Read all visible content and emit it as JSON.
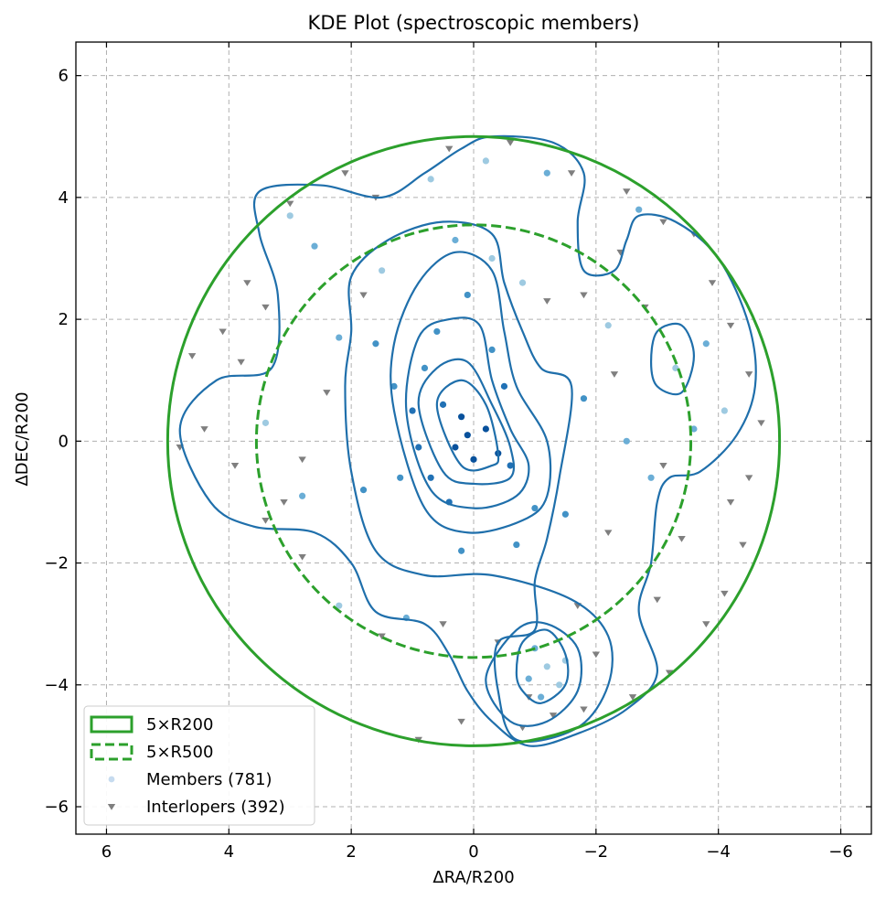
{
  "chart_data": {
    "type": "scatter",
    "title": "KDE Plot (spectroscopic members)",
    "xlabel": "ΔRA/R200",
    "ylabel": "ΔDEC/R200",
    "xlim": [
      6.5,
      -6.5
    ],
    "ylim": [
      -6.45,
      6.55
    ],
    "x_ticks": [
      6,
      4,
      2,
      0,
      -2,
      -4,
      -6
    ],
    "y_ticks": [
      6,
      4,
      2,
      0,
      -2,
      -4,
      -6
    ],
    "x_tick_labels": [
      "6",
      "4",
      "2",
      "0",
      "−2",
      "−4",
      "−6"
    ],
    "y_tick_labels": [
      "6",
      "4",
      "2",
      "0",
      "−2",
      "−4",
      "−6"
    ],
    "grid": true,
    "x_axis_reversed": true,
    "legend_position": "lower-left",
    "circles": [
      {
        "name": "5×R200",
        "center": [
          0,
          0
        ],
        "radius": 5.0,
        "style": "solid",
        "color": "#2ca02c"
      },
      {
        "name": "5×R500",
        "center": [
          0,
          0
        ],
        "radius": 3.55,
        "style": "dashed",
        "color": "#2ca02c"
      }
    ],
    "series": [
      {
        "name": "Members (781)",
        "marker": "circle",
        "color": "#4a98c9",
        "count": 781
      },
      {
        "name": "Interlopers (392)",
        "marker": "triangle-down",
        "color": "#7f7f7f",
        "count": 392
      }
    ],
    "members_sample": [
      [
        0.1,
        0.1
      ],
      [
        -0.2,
        0.2
      ],
      [
        0.3,
        -0.1
      ],
      [
        0.0,
        -0.3
      ],
      [
        -0.4,
        -0.2
      ],
      [
        0.2,
        0.4
      ],
      [
        0.5,
        0.6
      ],
      [
        0.8,
        1.2
      ],
      [
        1.0,
        0.5
      ],
      [
        0.6,
        1.8
      ],
      [
        0.1,
        2.4
      ],
      [
        -0.3,
        1.5
      ],
      [
        -0.6,
        -0.4
      ],
      [
        -1.0,
        -1.1
      ],
      [
        -0.7,
        -1.7
      ],
      [
        0.4,
        -1.0
      ],
      [
        1.2,
        -0.6
      ],
      [
        0.9,
        -0.1
      ],
      [
        -1.2,
        -3.7
      ],
      [
        -1.0,
        -3.4
      ],
      [
        -1.4,
        -4.0
      ],
      [
        -1.1,
        -4.2
      ],
      [
        -1.5,
        -3.6
      ],
      [
        -0.9,
        -3.9
      ],
      [
        1.5,
        2.8
      ],
      [
        2.2,
        1.7
      ],
      [
        1.8,
        -0.8
      ],
      [
        -1.8,
        0.7
      ],
      [
        -2.2,
        1.9
      ],
      [
        -2.5,
        0.0
      ],
      [
        3.0,
        3.7
      ],
      [
        2.6,
        3.2
      ],
      [
        -3.3,
        1.2
      ],
      [
        -3.8,
        1.6
      ],
      [
        -4.1,
        0.5
      ],
      [
        -3.6,
        0.2
      ],
      [
        -0.2,
        4.6
      ],
      [
        -1.2,
        4.4
      ],
      [
        0.7,
        4.3
      ],
      [
        -2.7,
        3.8
      ],
      [
        2.2,
        -2.7
      ],
      [
        1.1,
        -2.9
      ],
      [
        -0.3,
        3.0
      ],
      [
        0.3,
        3.3
      ],
      [
        -0.8,
        2.6
      ],
      [
        1.3,
        0.9
      ],
      [
        0.7,
        -0.6
      ],
      [
        -0.5,
        0.9
      ],
      [
        1.6,
        1.6
      ],
      [
        -1.5,
        -1.2
      ],
      [
        0.2,
        -1.8
      ],
      [
        2.8,
        -0.9
      ],
      [
        3.4,
        0.3
      ],
      [
        -2.9,
        -0.6
      ]
    ],
    "interlopers_sample": [
      [
        4.6,
        1.4
      ],
      [
        4.1,
        1.8
      ],
      [
        3.8,
        1.3
      ],
      [
        4.4,
        0.2
      ],
      [
        3.4,
        2.2
      ],
      [
        3.7,
        2.6
      ],
      [
        3.1,
        -1.0
      ],
      [
        2.8,
        -0.3
      ],
      [
        3.0,
        3.9
      ],
      [
        2.1,
        4.4
      ],
      [
        1.6,
        4.0
      ],
      [
        0.4,
        4.8
      ],
      [
        -0.6,
        4.9
      ],
      [
        -1.6,
        4.4
      ],
      [
        -2.5,
        4.1
      ],
      [
        -3.1,
        3.6
      ],
      [
        -3.6,
        3.4
      ],
      [
        -3.9,
        2.6
      ],
      [
        -4.2,
        1.9
      ],
      [
        -4.5,
        1.1
      ],
      [
        -4.7,
        0.3
      ],
      [
        -4.5,
        -0.6
      ],
      [
        -4.4,
        -1.7
      ],
      [
        -4.1,
        -2.5
      ],
      [
        -3.8,
        -3.0
      ],
      [
        -3.2,
        -3.8
      ],
      [
        -2.6,
        -4.2
      ],
      [
        -1.8,
        -4.4
      ],
      [
        -0.8,
        -4.7
      ],
      [
        0.2,
        -4.6
      ],
      [
        0.9,
        -4.9
      ],
      [
        1.5,
        -3.2
      ],
      [
        2.8,
        -1.9
      ],
      [
        3.4,
        -1.3
      ],
      [
        -2.2,
        -1.5
      ],
      [
        -2.8,
        2.2
      ],
      [
        -1.2,
        2.3
      ],
      [
        -1.8,
        2.4
      ],
      [
        -2.0,
        -3.5
      ],
      [
        -1.7,
        -2.7
      ],
      [
        0.5,
        -3.0
      ],
      [
        -0.4,
        -3.3
      ],
      [
        -3.0,
        -2.6
      ],
      [
        -4.2,
        -1.0
      ],
      [
        -2.4,
        3.1
      ],
      [
        1.8,
        2.4
      ],
      [
        2.4,
        0.8
      ],
      [
        4.8,
        -0.1
      ],
      [
        3.9,
        -0.4
      ],
      [
        -3.4,
        -1.6
      ],
      [
        -3.1,
        -0.4
      ],
      [
        -2.3,
        1.1
      ],
      [
        -0.9,
        -4.2
      ],
      [
        -1.3,
        -4.5
      ]
    ],
    "kde_contours": [
      {
        "level": "outer",
        "points": [
          [
            4.8,
            0.2
          ],
          [
            4.2,
            1.0
          ],
          [
            3.3,
            1.2
          ],
          [
            3.2,
            2.4
          ],
          [
            3.5,
            3.4
          ],
          [
            3.5,
            4.1
          ],
          [
            2.5,
            4.2
          ],
          [
            1.5,
            4.0
          ],
          [
            0.8,
            4.4
          ],
          [
            0.2,
            4.8
          ],
          [
            -0.3,
            5.0
          ],
          [
            -1.3,
            4.9
          ],
          [
            -1.8,
            4.4
          ],
          [
            -1.7,
            3.6
          ],
          [
            -1.8,
            2.8
          ],
          [
            -2.3,
            2.8
          ],
          [
            -2.5,
            3.3
          ],
          [
            -2.7,
            3.7
          ],
          [
            -3.3,
            3.6
          ],
          [
            -4.0,
            3.0
          ],
          [
            -4.5,
            1.9
          ],
          [
            -4.6,
            0.9
          ],
          [
            -4.3,
            0.1
          ],
          [
            -3.7,
            -0.5
          ],
          [
            -3.2,
            -0.6
          ],
          [
            -3.0,
            -1.0
          ],
          [
            -2.9,
            -2.0
          ],
          [
            -2.7,
            -2.8
          ],
          [
            -3.0,
            -3.8
          ],
          [
            -2.5,
            -4.4
          ],
          [
            -1.7,
            -4.8
          ],
          [
            -0.9,
            -5.0
          ],
          [
            -0.3,
            -4.6
          ],
          [
            0.1,
            -4.1
          ],
          [
            0.4,
            -3.5
          ],
          [
            0.8,
            -3.0
          ],
          [
            1.6,
            -2.8
          ],
          [
            2.0,
            -2.0
          ],
          [
            2.6,
            -1.5
          ],
          [
            3.6,
            -1.4
          ],
          [
            4.3,
            -1.0
          ],
          [
            4.8,
            0.2
          ]
        ]
      },
      {
        "level": "island",
        "points": [
          [
            -2.9,
            1.3
          ],
          [
            -3.0,
            1.8
          ],
          [
            -3.4,
            1.9
          ],
          [
            -3.6,
            1.4
          ],
          [
            -3.4,
            0.8
          ],
          [
            -3.0,
            0.9
          ],
          [
            -2.9,
            1.3
          ]
        ]
      },
      {
        "level": "middle",
        "points": [
          [
            2.1,
            0.9
          ],
          [
            2.0,
            1.8
          ],
          [
            2.0,
            2.7
          ],
          [
            1.4,
            3.3
          ],
          [
            0.5,
            3.6
          ],
          [
            -0.3,
            3.4
          ],
          [
            -0.5,
            2.6
          ],
          [
            -0.8,
            1.8
          ],
          [
            -1.1,
            1.2
          ],
          [
            -1.6,
            0.9
          ],
          [
            -1.4,
            -0.6
          ],
          [
            -1.2,
            -1.6
          ],
          [
            -1.0,
            -2.3
          ],
          [
            -1.0,
            -3.1
          ],
          [
            -0.4,
            -3.3
          ],
          [
            -0.4,
            -4.1
          ],
          [
            -0.7,
            -4.9
          ],
          [
            -1.7,
            -4.7
          ],
          [
            -2.2,
            -4.0
          ],
          [
            -2.2,
            -3.2
          ],
          [
            -1.6,
            -2.6
          ],
          [
            -0.3,
            -2.2
          ],
          [
            0.8,
            -2.2
          ],
          [
            1.6,
            -1.8
          ],
          [
            2.0,
            -0.5
          ],
          [
            2.1,
            0.9
          ]
        ]
      },
      {
        "level": "inner1",
        "points": [
          [
            1.3,
            0.5
          ],
          [
            1.3,
            1.6
          ],
          [
            0.9,
            2.6
          ],
          [
            0.3,
            3.1
          ],
          [
            -0.3,
            2.8
          ],
          [
            -0.5,
            1.8
          ],
          [
            -0.7,
            0.9
          ],
          [
            -1.2,
            0.0
          ],
          [
            -1.2,
            -0.9
          ],
          [
            -0.8,
            -1.3
          ],
          [
            0.1,
            -1.5
          ],
          [
            0.8,
            -1.1
          ],
          [
            1.3,
            0.5
          ]
        ]
      },
      {
        "level": "inner2",
        "points": [
          [
            1.1,
            0.5
          ],
          [
            0.9,
            1.7
          ],
          [
            0.4,
            2.0
          ],
          [
            -0.1,
            1.9
          ],
          [
            -0.3,
            1.0
          ],
          [
            -0.6,
            0.2
          ],
          [
            -0.9,
            -0.4
          ],
          [
            -0.7,
            -0.9
          ],
          [
            0.0,
            -1.1
          ],
          [
            0.7,
            -0.8
          ],
          [
            1.1,
            0.5
          ]
        ]
      },
      {
        "level": "inner3",
        "points": [
          [
            0.9,
            0.6
          ],
          [
            0.6,
            1.2
          ],
          [
            0.1,
            1.3
          ],
          [
            -0.3,
            0.6
          ],
          [
            -0.6,
            -0.1
          ],
          [
            -0.6,
            -0.6
          ],
          [
            0.0,
            -0.7
          ],
          [
            0.5,
            -0.5
          ],
          [
            0.9,
            0.6
          ]
        ]
      },
      {
        "level": "inner4",
        "points": [
          [
            0.6,
            0.6
          ],
          [
            0.2,
            1.0
          ],
          [
            -0.2,
            0.6
          ],
          [
            -0.4,
            -0.2
          ],
          [
            -0.3,
            -0.4
          ],
          [
            0.2,
            -0.4
          ],
          [
            0.6,
            0.6
          ]
        ]
      },
      {
        "level": "south1",
        "points": [
          [
            -0.2,
            -3.9
          ],
          [
            -0.7,
            -3.1
          ],
          [
            -1.2,
            -3.0
          ],
          [
            -1.7,
            -3.4
          ],
          [
            -1.7,
            -4.1
          ],
          [
            -1.2,
            -4.6
          ],
          [
            -0.6,
            -4.6
          ],
          [
            -0.2,
            -3.9
          ]
        ]
      },
      {
        "level": "south2",
        "points": [
          [
            -0.7,
            -3.8
          ],
          [
            -0.8,
            -3.3
          ],
          [
            -1.2,
            -3.1
          ],
          [
            -1.5,
            -3.5
          ],
          [
            -1.5,
            -4.0
          ],
          [
            -1.1,
            -4.3
          ],
          [
            -0.8,
            -4.1
          ],
          [
            -0.7,
            -3.8
          ]
        ]
      }
    ],
    "legend": [
      "5×R200",
      "5×R500",
      "Members (781)",
      "Interlopers (392)"
    ]
  }
}
